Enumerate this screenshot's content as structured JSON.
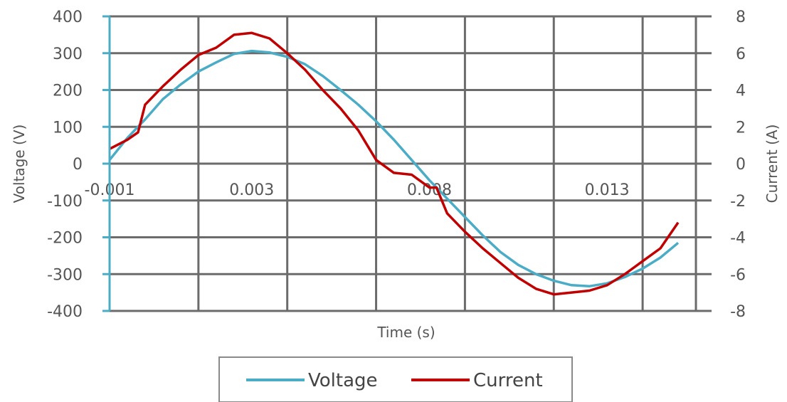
{
  "chart_data": {
    "type": "line",
    "title": "",
    "xlabel": "Time (s)",
    "ylabel_left": "Voltage (V)",
    "ylabel_right": "Current (A)",
    "x_range": [
      -0.001,
      0.0157
    ],
    "x_ticks": [
      -0.001,
      0.003,
      0.008,
      0.013
    ],
    "x_tick_labels": [
      "-0.001",
      "0.003",
      "0.008",
      "0.013"
    ],
    "x_gridlines": [
      -0.001,
      0.0015,
      0.004,
      0.0065,
      0.009,
      0.0115,
      0.014,
      0.0155
    ],
    "ylim_left": [
      -400,
      400
    ],
    "yticks_left": [
      -400,
      -300,
      -200,
      -100,
      0,
      100,
      200,
      300,
      400
    ],
    "ylim_right": [
      -8,
      8
    ],
    "yticks_right": [
      -8,
      -6,
      -4,
      -2,
      0,
      2,
      4,
      6,
      8
    ],
    "grid": true,
    "legend_position": "bottom",
    "colors": {
      "voltage": "#4bacc6",
      "current": "#c00000",
      "grid": "#6b6b6b",
      "left_axis": "#4bacc6"
    },
    "series": [
      {
        "name": "Voltage",
        "axis": "left",
        "color": "#4bacc6",
        "points": [
          [
            -0.001,
            10
          ],
          [
            -0.0005,
            70
          ],
          [
            0.0,
            120
          ],
          [
            0.0005,
            175
          ],
          [
            0.001,
            215
          ],
          [
            0.0015,
            250
          ],
          [
            0.002,
            275
          ],
          [
            0.0025,
            298
          ],
          [
            0.003,
            306
          ],
          [
            0.0035,
            302
          ],
          [
            0.004,
            290
          ],
          [
            0.0045,
            270
          ],
          [
            0.005,
            238
          ],
          [
            0.0055,
            200
          ],
          [
            0.006,
            160
          ],
          [
            0.0065,
            115
          ],
          [
            0.007,
            65
          ],
          [
            0.0075,
            10
          ],
          [
            0.008,
            -45
          ],
          [
            0.0085,
            -95
          ],
          [
            0.009,
            -145
          ],
          [
            0.0095,
            -195
          ],
          [
            0.01,
            -240
          ],
          [
            0.0105,
            -275
          ],
          [
            0.011,
            -300
          ],
          [
            0.0115,
            -318
          ],
          [
            0.012,
            -330
          ],
          [
            0.0125,
            -333
          ],
          [
            0.013,
            -325
          ],
          [
            0.0135,
            -308
          ],
          [
            0.014,
            -285
          ],
          [
            0.0145,
            -255
          ],
          [
            0.015,
            -215
          ]
        ]
      },
      {
        "name": "Current",
        "axis": "right",
        "color": "#c00000",
        "points": [
          [
            -0.001,
            0.8
          ],
          [
            -0.0005,
            1.3
          ],
          [
            -0.0002,
            1.7
          ],
          [
            0.0,
            3.2
          ],
          [
            0.0005,
            4.2
          ],
          [
            0.001,
            5.1
          ],
          [
            0.0015,
            5.9
          ],
          [
            0.002,
            6.3
          ],
          [
            0.0025,
            7.0
          ],
          [
            0.003,
            7.1
          ],
          [
            0.0035,
            6.8
          ],
          [
            0.004,
            6.0
          ],
          [
            0.0045,
            5.1
          ],
          [
            0.005,
            4.0
          ],
          [
            0.0055,
            3.0
          ],
          [
            0.006,
            1.8
          ],
          [
            0.0065,
            0.2
          ],
          [
            0.007,
            -0.5
          ],
          [
            0.0075,
            -0.6
          ],
          [
            0.008,
            -1.3
          ],
          [
            0.0082,
            -1.3
          ],
          [
            0.0085,
            -2.7
          ],
          [
            0.009,
            -3.7
          ],
          [
            0.0095,
            -4.6
          ],
          [
            0.01,
            -5.4
          ],
          [
            0.0105,
            -6.2
          ],
          [
            0.011,
            -6.8
          ],
          [
            0.0115,
            -7.1
          ],
          [
            0.012,
            -7.0
          ],
          [
            0.0125,
            -6.9
          ],
          [
            0.013,
            -6.6
          ],
          [
            0.0135,
            -6.0
          ],
          [
            0.014,
            -5.3
          ],
          [
            0.0145,
            -4.6
          ],
          [
            0.015,
            -3.2
          ]
        ]
      }
    ]
  }
}
